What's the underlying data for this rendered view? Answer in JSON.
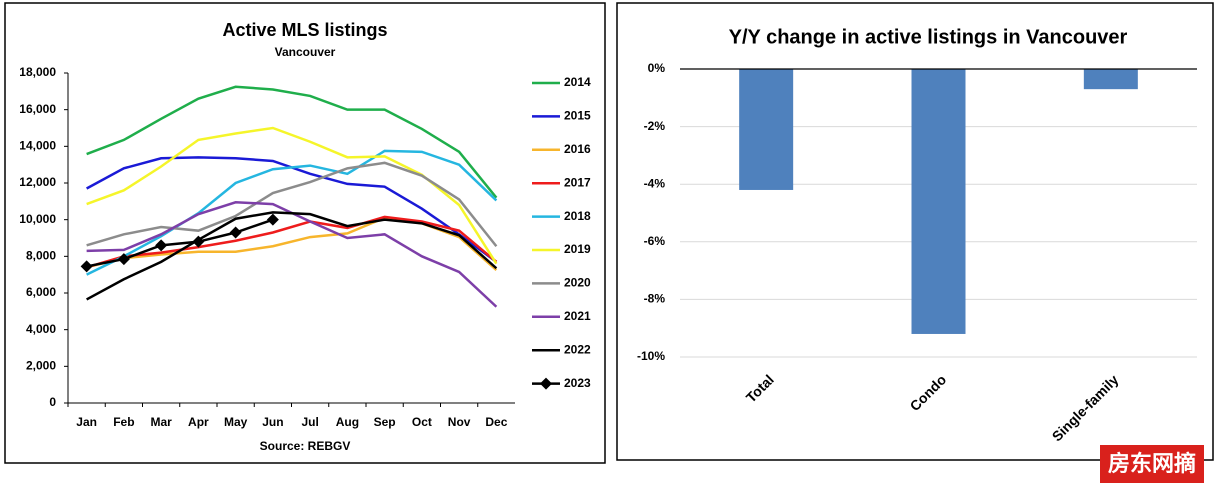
{
  "chart_data": [
    {
      "type": "line",
      "title": "Active MLS listings",
      "subtitle": "Vancouver",
      "source": "Source: REBGV",
      "categories": [
        "Jan",
        "Feb",
        "Mar",
        "Apr",
        "May",
        "Jun",
        "Jul",
        "Aug",
        "Sep",
        "Oct",
        "Nov",
        "Dec"
      ],
      "ylim": [
        0,
        18000
      ],
      "yticks": [
        0,
        {
          "value": 2000,
          "label": "2,000"
        },
        {
          "value": 4000,
          "label": "4,000"
        },
        {
          "value": 6000,
          "label": "6,000"
        },
        {
          "value": 8000,
          "label": "8,000"
        },
        {
          "value": 10000,
          "label": "10,000"
        },
        {
          "value": 12000,
          "label": "12,000"
        },
        {
          "value": 14000,
          "label": "14,000"
        },
        {
          "value": 16000,
          "label": "16,000"
        },
        {
          "value": 18000,
          "label": "18,000"
        }
      ],
      "grid": false,
      "legend": "right",
      "series": [
        {
          "name": "2014",
          "color": "#1fae4b",
          "values": [
            13580,
            14350,
            15500,
            16600,
            17250,
            17100,
            16750,
            16000,
            16000,
            14950,
            13700,
            11200
          ]
        },
        {
          "name": "2015",
          "color": "#1a1ad6",
          "values": [
            11700,
            12800,
            13350,
            13400,
            13350,
            13200,
            12500,
            11950,
            11800,
            10600,
            9200,
            7700
          ]
        },
        {
          "name": "2016",
          "color": "#f7b52c",
          "values": [
            7400,
            7900,
            8100,
            8250,
            8250,
            8550,
            9050,
            9250,
            10100,
            9800,
            9050,
            7250
          ]
        },
        {
          "name": "2017",
          "color": "#ee1c1c",
          "values": [
            7400,
            8000,
            8200,
            8500,
            8850,
            9300,
            9900,
            9550,
            10150,
            9900,
            9400,
            7700
          ]
        },
        {
          "name": "2018",
          "color": "#25b6e0",
          "values": [
            7000,
            8000,
            9100,
            10350,
            12000,
            12750,
            12950,
            12500,
            13750,
            13700,
            13000,
            11050
          ]
        },
        {
          "name": "2019",
          "color": "#f5f52a",
          "values": [
            10850,
            11600,
            12900,
            14350,
            14700,
            15000,
            14250,
            13400,
            13450,
            12450,
            10800,
            7600
          ]
        },
        {
          "name": "2020",
          "color": "#8c8c8c",
          "values": [
            8600,
            9200,
            9600,
            9400,
            10200,
            11450,
            12050,
            12800,
            13100,
            12400,
            11100,
            8550
          ]
        },
        {
          "name": "2021",
          "color": "#7d3fa8",
          "values": [
            8300,
            8350,
            9200,
            10300,
            10950,
            10850,
            9900,
            9000,
            9200,
            8000,
            7150,
            5250
          ]
        },
        {
          "name": "2022",
          "color": "#000000",
          "values": [
            5650,
            6750,
            7700,
            8900,
            10050,
            10400,
            10300,
            9650,
            10000,
            9800,
            9150,
            7350
          ]
        },
        {
          "name": "2023",
          "color": "#000000",
          "marker": "diamond",
          "values": [
            7450,
            7850,
            8600,
            8800,
            9300,
            10000,
            null,
            null,
            null,
            null,
            null,
            null
          ]
        }
      ]
    },
    {
      "type": "bar",
      "title": "Y/Y change in active listings in Vancouver",
      "categories": [
        "Total",
        "Condo",
        "Single-family"
      ],
      "values": [
        -4.2,
        -9.2,
        -0.7
      ],
      "color": "#4f81bd",
      "ylim": [
        -10,
        0
      ],
      "yticks": [
        {
          "value": 0,
          "label": "0%"
        },
        {
          "value": -2,
          "label": "-2%"
        },
        {
          "value": -4,
          "label": "-4%"
        },
        {
          "value": -6,
          "label": "-6%"
        },
        {
          "value": -8,
          "label": "-8%"
        },
        {
          "value": -10,
          "label": "-10%"
        }
      ],
      "grid": true
    }
  ],
  "watermark": "房东网摘"
}
